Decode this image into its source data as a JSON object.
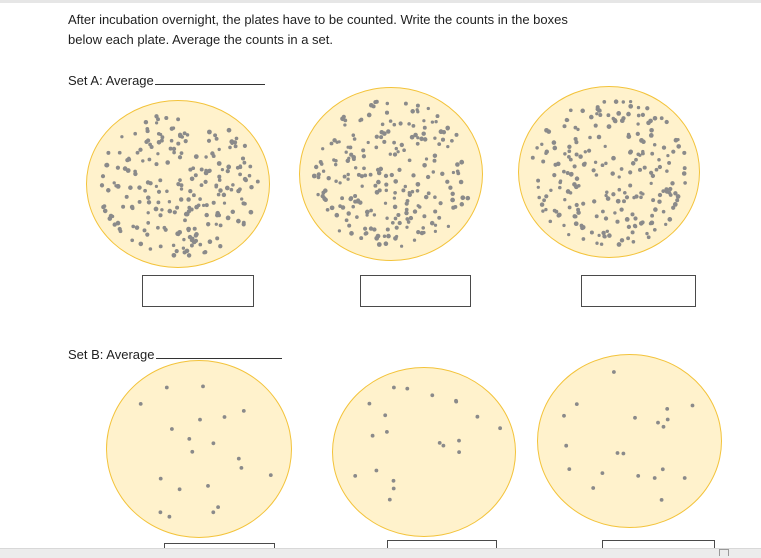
{
  "instructions": {
    "line1": "After incubation overnight, the plates have to be counted.   Write the counts in the boxes",
    "line2": "below each plate.  Average the counts in a set."
  },
  "sets": [
    {
      "label": "Set A:  Average",
      "plates": [
        {
          "colony_density": "high",
          "count_value": ""
        },
        {
          "colony_density": "high",
          "count_value": ""
        },
        {
          "colony_density": "high",
          "count_value": ""
        }
      ]
    },
    {
      "label": "Set B:  Average",
      "plates": [
        {
          "colony_density": "low",
          "count_value": ""
        },
        {
          "colony_density": "low",
          "count_value": ""
        },
        {
          "colony_density": "low",
          "count_value": ""
        }
      ]
    }
  ],
  "colors": {
    "plate_fill": "#fff2cc",
    "plate_border": "#f3c33a",
    "colony": "#8a8a8a"
  }
}
